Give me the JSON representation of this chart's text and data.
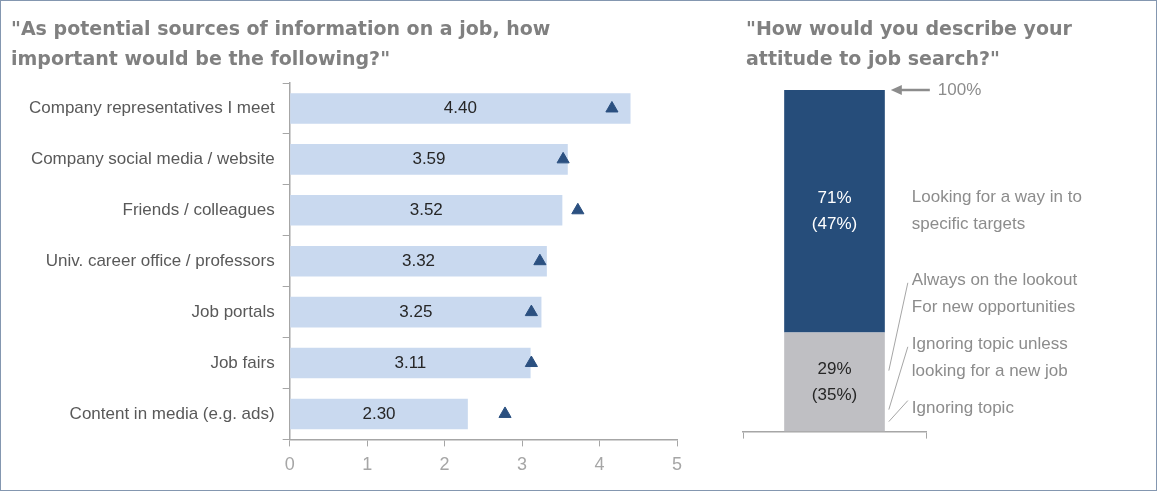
{
  "chart_data": [
    {
      "type": "bar",
      "orientation": "horizontal",
      "title": "\"As potential sources of information on a job, how important would be the following?\"",
      "categories": [
        "Company representatives I meet",
        "Company social media / website",
        "Friends / colleagues",
        "Univ. career office / professors",
        "Job portals",
        "Job fairs",
        "Content in media (e.g. ads)"
      ],
      "series": [
        {
          "color": "#c9d9ef",
          "values": [
            4.4,
            3.59,
            3.52,
            3.32,
            3.25,
            3.11,
            2.3
          ],
          "value_labels": [
            "4.40",
            "3.59",
            "3.52",
            "3.32",
            "3.25",
            "3.11",
            "2.30"
          ]
        },
        {
          "type": "scatter",
          "color": "#2b5080",
          "marker": "triangle",
          "values": [
            4.16,
            3.53,
            3.72,
            3.23,
            3.12,
            3.12,
            2.78
          ]
        }
      ],
      "xlim": [
        0,
        5
      ],
      "xticks": [
        0,
        1,
        2,
        3,
        4,
        5
      ]
    },
    {
      "type": "bar",
      "stacked": true,
      "title": "\"How would you describe your attitude to job search?\"",
      "categories": [
        null
      ],
      "series": [
        {
          "color": "#bfbfc3",
          "values": [
            29
          ],
          "value_labels": [
            "29%\n(35%)"
          ]
        },
        {
          "name": "Looking for a way in to specific targets",
          "color": "#264d7a",
          "values": [
            71
          ],
          "value_labels": [
            "71%\n(47%)"
          ]
        }
      ],
      "ylim": [
        0,
        100
      ],
      "annotations": [
        "100%",
        "Always on the lookout\nFor new opportunities",
        "Ignoring topic unless\nlooking for a new job",
        "Ignoring topic"
      ]
    }
  ]
}
